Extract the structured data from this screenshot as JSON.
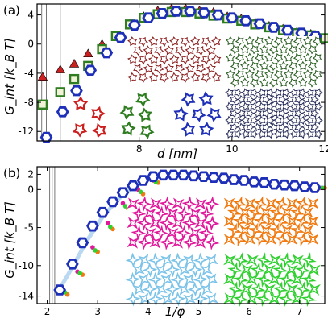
{
  "chart_data": [
    {
      "type": "scatter",
      "panel_label": "(a)",
      "xlabel": "d [nm]",
      "ylabel": "G_int [k_B T]",
      "xlim": [
        5.8,
        12.0
      ],
      "ylim": [
        -13.3,
        5.5
      ],
      "xticks": [
        8,
        10,
        12
      ],
      "yticks": [
        4,
        0,
        -4,
        -8,
        -12
      ],
      "vlines": [
        5.9,
        6.0,
        6.3
      ],
      "grid": false,
      "series": [
        {
          "color": "#cc1f1f",
          "marker": "triangle",
          "x": [
            5.92,
            6.3,
            6.6,
            6.9,
            7.2,
            7.5,
            7.8,
            8.1,
            8.4,
            8.7,
            9.0,
            9.3,
            9.6,
            9.9,
            10.2,
            10.5,
            10.8,
            11.1,
            11.4,
            11.7,
            12.0
          ],
          "y": [
            -4.5,
            -3.5,
            -2.7,
            -1.3,
            0.0,
            1.2,
            2.8,
            3.8,
            4.6,
            4.9,
            4.9,
            4.6,
            4.4,
            3.8,
            3.5,
            3.0,
            2.5,
            2.1,
            1.7,
            1.4,
            0.9
          ]
        },
        {
          "color": "#2e7d20",
          "marker": "square",
          "x": [
            5.92,
            6.3,
            6.6,
            6.9,
            7.2,
            7.5,
            7.8,
            8.1,
            8.4,
            8.7,
            9.0,
            9.3,
            9.6,
            9.9,
            10.2,
            10.5,
            10.8,
            11.1,
            11.4,
            11.7,
            12.0
          ],
          "y": [
            -8.3,
            -6.6,
            -4.8,
            -3.0,
            -0.7,
            1.1,
            2.7,
            3.6,
            4.1,
            4.4,
            4.4,
            4.2,
            3.9,
            3.5,
            3.2,
            2.7,
            2.3,
            1.9,
            1.5,
            1.2,
            0.8
          ]
        },
        {
          "color": "#1e2fb8",
          "marker": "hexagon",
          "x": [
            6.0,
            6.35,
            6.65,
            6.95,
            7.3,
            7.6,
            7.9,
            8.2,
            8.5,
            8.8,
            9.1,
            9.4,
            9.7,
            10.0,
            10.3,
            10.6,
            10.9,
            11.2,
            11.5,
            11.8
          ],
          "y": [
            -12.8,
            -9.3,
            -6.4,
            -3.6,
            -1.2,
            0.9,
            2.6,
            3.6,
            4.2,
            4.5,
            4.5,
            4.3,
            4.0,
            3.6,
            3.2,
            2.8,
            2.3,
            1.9,
            1.5,
            1.1
          ]
        }
      ]
    },
    {
      "type": "line",
      "panel_label": "(b)",
      "xlabel": "1/φ",
      "ylabel": "G_int [k_B T]",
      "xlim": [
        1.8,
        7.5
      ],
      "ylim": [
        -15.0,
        3.0
      ],
      "xticks": [
        2,
        3,
        4,
        5,
        6,
        7
      ],
      "yticks": [
        2,
        0,
        -5,
        -10,
        -14
      ],
      "vlines": [
        2.05,
        2.1,
        2.15
      ],
      "grid": false,
      "series": [
        {
          "color": "#1e2fb8",
          "marker": "hexagon",
          "x": [
            2.25,
            2.5,
            2.7,
            2.9,
            3.1,
            3.3,
            3.5,
            3.7,
            3.9,
            4.1,
            4.3,
            4.5,
            4.7,
            4.9,
            5.1,
            5.3,
            5.5,
            5.7,
            5.9,
            6.1,
            6.3,
            6.5,
            6.7,
            6.9,
            7.1,
            7.3
          ],
          "y": [
            -13.2,
            -9.8,
            -7.0,
            -4.8,
            -3.0,
            -1.6,
            -0.4,
            0.5,
            1.2,
            1.7,
            1.9,
            1.9,
            1.9,
            1.8,
            1.7,
            1.6,
            1.5,
            1.3,
            1.2,
            1.0,
            0.9,
            0.7,
            0.6,
            0.5,
            0.35,
            0.25
          ]
        },
        {
          "color": "#b3d4f0",
          "marker": "none",
          "x": [
            2.2,
            2.5,
            2.8,
            3.1,
            3.4,
            3.7,
            4.0,
            4.3,
            4.6,
            4.9,
            5.2,
            5.5,
            5.8,
            6.1,
            6.4,
            6.7,
            7.0,
            7.3,
            7.5
          ],
          "y": [
            -13.6,
            -10.2,
            -6.6,
            -3.6,
            -1.3,
            0.3,
            1.4,
            1.9,
            2.0,
            1.9,
            1.7,
            1.5,
            1.3,
            1.1,
            0.9,
            0.7,
            0.5,
            0.35,
            0.25
          ]
        },
        {
          "color": "#e0189a",
          "marker": "dot",
          "x": [
            2.3,
            2.6,
            2.9,
            3.2,
            3.5,
            3.8,
            4.1,
            4.4,
            4.7,
            5.0,
            5.3,
            5.6,
            5.9,
            6.2,
            6.5,
            6.8,
            7.1,
            7.4
          ],
          "y": [
            -13.4,
            -10.8,
            -7.6,
            -4.4,
            -1.8,
            0.0,
            1.2,
            1.8,
            1.9,
            1.8,
            1.6,
            1.3,
            1.1,
            0.9,
            0.7,
            0.5,
            0.35,
            0.2
          ]
        },
        {
          "color": "#f07a10",
          "marker": "dot",
          "x": [
            2.4,
            2.7,
            3.0,
            3.3,
            3.6,
            3.9,
            4.2,
            4.5,
            4.8,
            5.1,
            5.4,
            5.7,
            6.0,
            6.3,
            6.6,
            6.9,
            7.2,
            7.5
          ],
          "y": [
            -13.8,
            -11.2,
            -8.2,
            -5.2,
            -2.5,
            -0.6,
            0.9,
            1.7,
            1.9,
            1.8,
            1.6,
            1.4,
            1.2,
            0.9,
            0.7,
            0.5,
            0.3,
            0.2
          ]
        },
        {
          "color": "#30d030",
          "marker": "dot",
          "x": [
            2.35,
            2.65,
            2.95,
            3.25,
            3.55,
            3.85,
            4.15,
            4.45,
            4.75,
            5.05,
            5.35,
            5.65,
            5.95,
            6.25,
            6.55,
            6.85,
            7.15,
            7.45
          ],
          "y": [
            -13.5,
            -11.0,
            -8.0,
            -4.9,
            -2.2,
            -0.3,
            1.0,
            1.7,
            1.9,
            1.8,
            1.6,
            1.4,
            1.1,
            0.9,
            0.7,
            0.5,
            0.3,
            0.2
          ]
        }
      ]
    }
  ]
}
